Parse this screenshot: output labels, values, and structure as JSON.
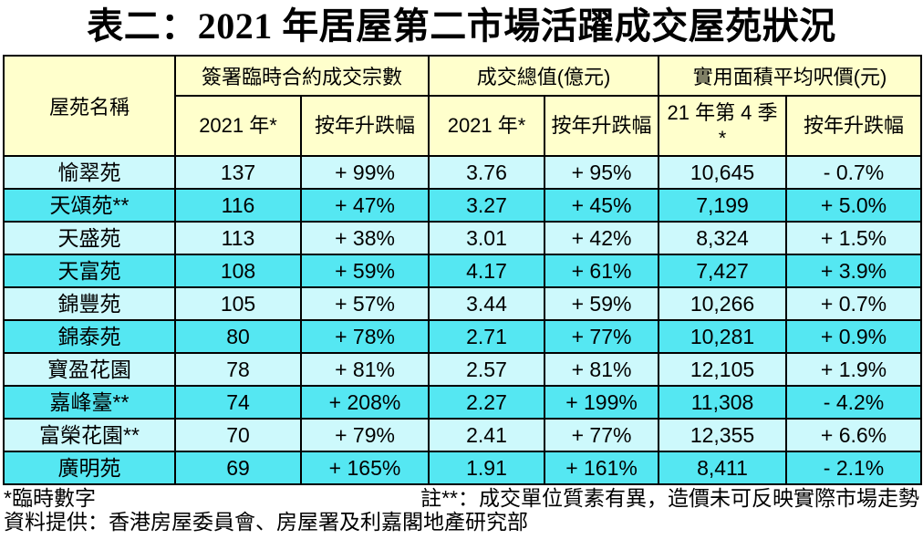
{
  "title": "表二：2021 年居屋第二市場活躍成交屋苑狀況",
  "colors": {
    "header_bg": "#FFFFCC",
    "row_light": "#CDF9FC",
    "row_dark": "#55E7F2",
    "border_color": "#000000",
    "text_color": "#000000"
  },
  "table": {
    "corner_header": "屋苑名稱",
    "groups": [
      {
        "label": "簽署臨時合約成交宗數"
      },
      {
        "label": "成交總值(億元)"
      },
      {
        "label": "實用面積平均呎價(元)"
      }
    ],
    "sub_headers": [
      {
        "line1": "2021 年*",
        "line2": ""
      },
      {
        "line1": "按年升跌幅",
        "line2": ""
      },
      {
        "line1": "2021 年*",
        "line2": ""
      },
      {
        "line1": "按年升跌幅",
        "line2": ""
      },
      {
        "line1": "21 年第 4 季",
        "line2": "*"
      },
      {
        "line1": "按年升跌幅",
        "line2": ""
      }
    ],
    "rows": [
      [
        "愉翠苑",
        "137",
        "+ 99%",
        "3.76",
        "+ 95%",
        "10,645",
        "- 0.7%"
      ],
      [
        "天頌苑**",
        "116",
        "+ 47%",
        "3.27",
        "+ 45%",
        "7,199",
        "+ 5.0%"
      ],
      [
        "天盛苑",
        "113",
        "+ 38%",
        "3.01",
        "+ 42%",
        "8,324",
        "+ 1.5%"
      ],
      [
        "天富苑",
        "108",
        "+ 59%",
        "4.17",
        "+ 61%",
        "7,427",
        "+ 3.9%"
      ],
      [
        "錦豐苑",
        "105",
        "+ 57%",
        "3.44",
        "+ 59%",
        "10,266",
        "+ 0.7%"
      ],
      [
        "錦泰苑",
        "80",
        "+ 78%",
        "2.71",
        "+ 77%",
        "10,281",
        "+ 0.9%"
      ],
      [
        "寶盈花園",
        "78",
        "+ 81%",
        "2.57",
        "+ 81%",
        "12,105",
        "+ 1.9%"
      ],
      [
        "嘉峰臺**",
        "74",
        "+ 208%",
        "2.27",
        "+ 199%",
        "11,308",
        "- 4.2%"
      ],
      [
        "富榮花園**",
        "70",
        "+ 79%",
        "2.41",
        "+ 77%",
        "12,355",
        "+ 6.6%"
      ],
      [
        "廣明苑",
        "69",
        "+ 165%",
        "1.91",
        "+ 161%",
        "8,411",
        "- 2.1%"
      ]
    ]
  },
  "footnotes": {
    "provisional": "*臨時數字",
    "quality_note": "註**：成交單位質素有異，造價未可反映實際市場走勢",
    "source": "資料提供：香港房屋委員會、房屋署及利嘉閣地產研究部"
  }
}
